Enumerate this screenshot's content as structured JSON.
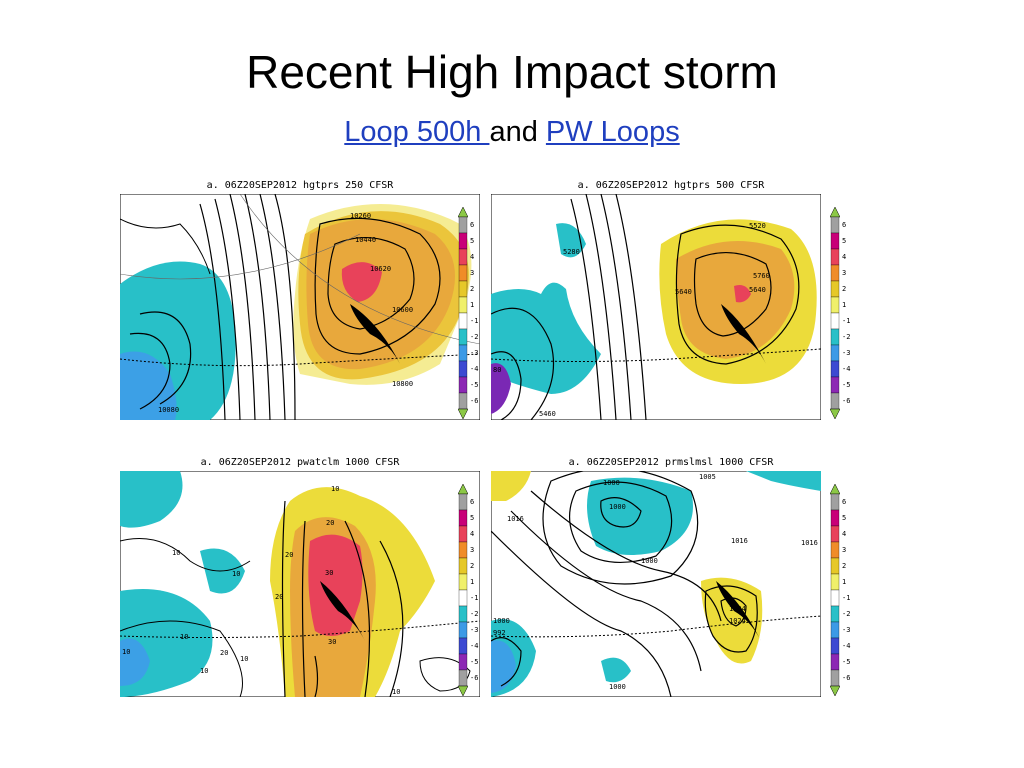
{
  "slide": {
    "title": "Recent High Impact storm",
    "link1": "Loop 500h ",
    "and_text": " and ",
    "link2": "PW Loops"
  },
  "panels": [
    {
      "id": "p1",
      "title": "a. 06Z20SEP2012  hgtprs  250  CFSR",
      "labels": [
        "10260",
        "10440",
        "10620",
        "10600",
        "10800",
        "10080"
      ]
    },
    {
      "id": "p2",
      "title": "a. 06Z20SEP2012  hgtprs  500  CFSR",
      "labels": [
        "5520",
        "5280",
        "5640",
        "5760",
        "5640",
        "5460",
        "80"
      ]
    },
    {
      "id": "p3",
      "title": "a. 06Z20SEP2012  pwatclm  1000  CFSR",
      "labels": [
        "10",
        "20",
        "10",
        "20",
        "30",
        "20",
        "10",
        "10",
        "20",
        "30",
        "10",
        "10",
        "10",
        "10"
      ]
    },
    {
      "id": "p4",
      "title": "a. 06Z20SEP2012  prmslmsl  1000  CFSR",
      "labels": [
        "1000",
        "1005",
        "1016",
        "1000",
        "1016",
        "1016",
        "1000",
        "1024",
        "1024",
        "1000",
        "992",
        "1000"
      ]
    }
  ],
  "colorbar": {
    "labels": [
      "6",
      "5",
      "4",
      "3",
      "2",
      "1",
      "-1",
      "-2",
      "-3",
      "-4",
      "-5",
      "-6"
    ],
    "colors": [
      "#a0a0a0",
      "#c80078",
      "#e8425a",
      "#f08c28",
      "#e6c828",
      "#f0f06a",
      "#ffffff",
      "#28c0c8",
      "#3c9ae6",
      "#3c4ad2",
      "#8c28b4",
      "#a0a0a0"
    ],
    "arrow_color": "#8cc846"
  },
  "colors": {
    "warm_light": "#ecdc3a",
    "warm_mid": "#e8a83c",
    "warm_hot": "#e8425a",
    "cool_light": "#28c0c8",
    "cool_mid": "#3ca0e6",
    "cool_deep": "#7a28b4",
    "link": "#1f3fbf"
  }
}
